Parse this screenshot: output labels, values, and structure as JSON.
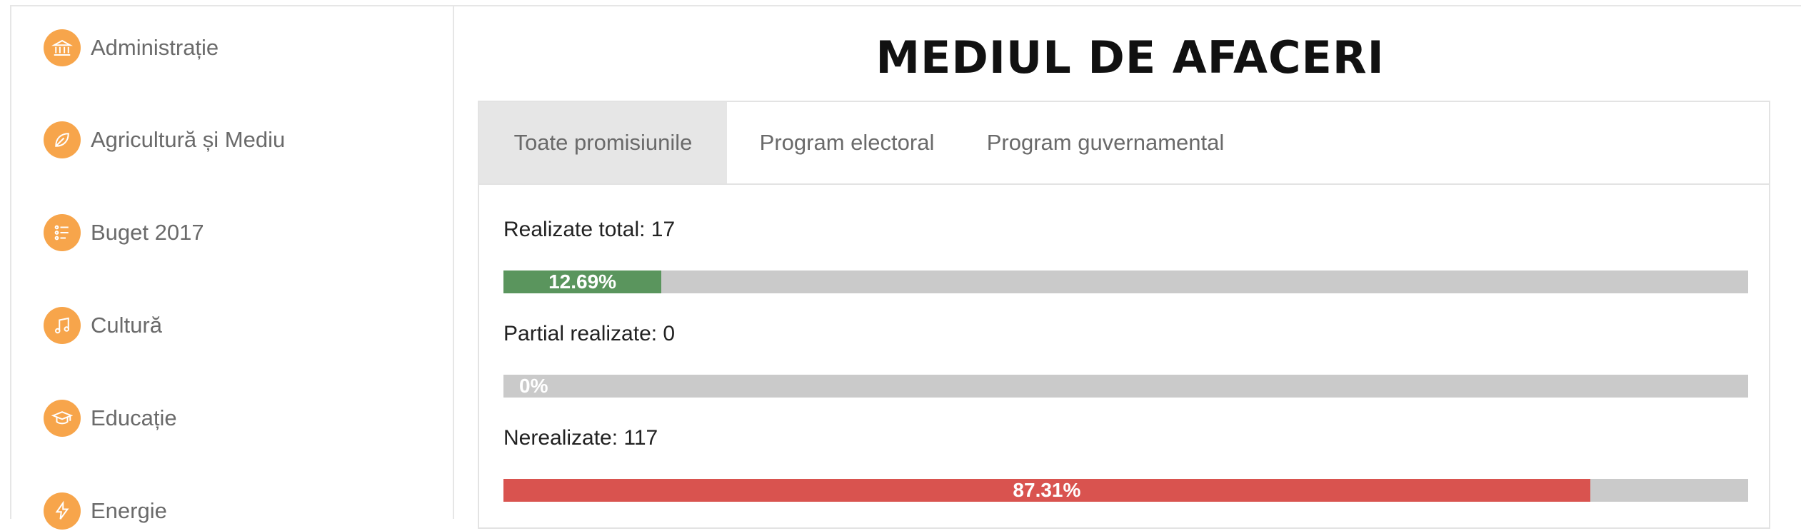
{
  "sidebar": {
    "items": [
      {
        "label": "Administrație",
        "icon": "building-icon"
      },
      {
        "label": "Agricultură și Mediu",
        "icon": "leaf-icon"
      },
      {
        "label": "Buget 2017",
        "icon": "list-icon"
      },
      {
        "label": "Cultură",
        "icon": "music-note-icon"
      },
      {
        "label": "Educație",
        "icon": "graduation-cap-icon"
      },
      {
        "label": "Energie",
        "icon": "lightning-icon"
      }
    ],
    "icon_color": "#f7a54b"
  },
  "main": {
    "title": "MEDIUL DE AFACERI",
    "tabs": [
      {
        "label": "Toate promisiunile",
        "active": true
      },
      {
        "label": "Program electoral",
        "active": false
      },
      {
        "label": "Program guvernamental",
        "active": false
      }
    ],
    "stats": [
      {
        "label": "Realizate total: 17",
        "percent_text": "12.69%",
        "fraction": 0.1269,
        "color": "#5a955d"
      },
      {
        "label": "Partial realizate: 0",
        "percent_text": "0%",
        "fraction": 0.0,
        "color": "#f0ad4e"
      },
      {
        "label": "Nerealizate: 117",
        "percent_text": "87.31%",
        "fraction": 0.8731,
        "color": "#d9534f"
      }
    ],
    "track_color": "#cacaca"
  }
}
